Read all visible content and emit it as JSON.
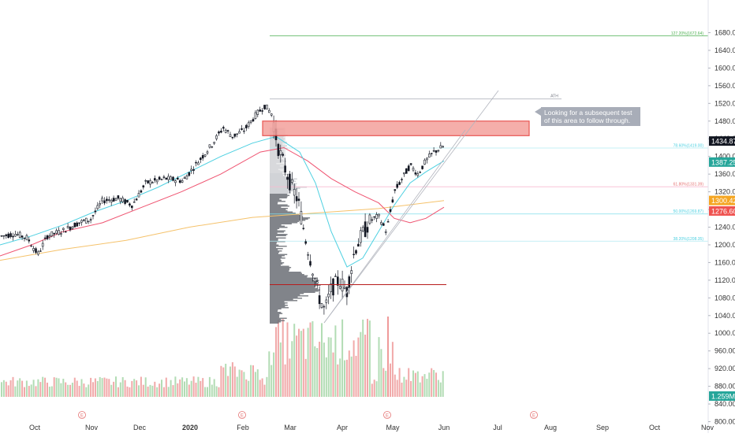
{
  "chart_data": {
    "type": "candlestick",
    "y_axis": {
      "ticks": [
        "800.00",
        "840.00",
        "880.00",
        "920.00",
        "960.00",
        "1000.00",
        "1040.00",
        "1080.00",
        "1120.00",
        "1160.00",
        "1200.00",
        "1240.00",
        "1280.00",
        "1320.00",
        "1360.00",
        "1400.00",
        "1440.00",
        "1480.00",
        "1520.00",
        "1560.00",
        "1600.00",
        "1640.00",
        "1680.00"
      ],
      "range": [
        800,
        1700
      ],
      "position": "right"
    },
    "x_axis": {
      "ticks": [
        "Oct",
        "Nov",
        "Dec",
        "2020",
        "Feb",
        "Mar",
        "Apr",
        "May",
        "Jun",
        "Jul",
        "Aug",
        "Sep",
        "Oct",
        "Nov"
      ]
    },
    "price_labels": [
      {
        "text": "1434.87",
        "value": 1434.87,
        "color": "#131722"
      },
      {
        "text": "1387.25",
        "value": 1387.25,
        "color": "#26a69a"
      },
      {
        "text": "1300.42",
        "value": 1300.42,
        "color": "#f5a623"
      },
      {
        "text": "1276.60",
        "value": 1276.6,
        "color": "#ef5350"
      }
    ],
    "volume_label": {
      "text": "1.259M",
      "color": "#26a69a"
    },
    "fib_levels": [
      {
        "label": "127.20%(1672.64)",
        "value": 1672.64
      },
      {
        "label": "78.60%(1419.00)",
        "value": 1419.0
      },
      {
        "label": "61.80%(1331.39)",
        "value": 1331.39
      },
      {
        "label": "50.00%(1269.87)",
        "value": 1269.87
      },
      {
        "label": "38.20%(1208.35)",
        "value": 1208.35
      }
    ],
    "ath": {
      "label": "ATH",
      "value": 1530
    },
    "resistance_zone": {
      "from": 1447,
      "to": 1480
    },
    "poc_level": 1110,
    "annotation": "Looking for a subsequent test of this area to follow through.",
    "event_markers": [
      "E",
      "E",
      "E",
      "E"
    ],
    "colors": {
      "up": "#26a69a",
      "down": "#131722",
      "volume_up": "#a5d6a7",
      "volume_down": "#ef9a9a",
      "ma_fast": "#4dd0e1",
      "ma_mid": "#ef5370",
      "ma_slow": "#f5c26b",
      "zone": "#f4a09c"
    }
  }
}
